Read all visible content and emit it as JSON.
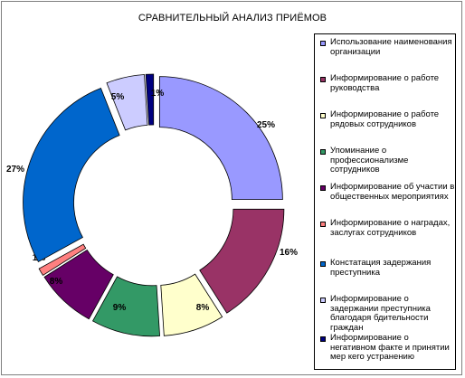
{
  "chart_data": {
    "type": "pie",
    "style": "exploded doughnut",
    "title": "СРАВНИТЕЛЬНЫЙ АНАЛИЗ ПРИЁМОВ",
    "legend_position": "right",
    "slices": [
      {
        "label": "Использование наименования организации",
        "value": 25,
        "value_label": "25%",
        "color": "#9999ff"
      },
      {
        "label": "Информирование о работе руководства",
        "value": 16,
        "value_label": "16%",
        "color": "#993366"
      },
      {
        "label": "Информирование о работе рядовых сотрудников",
        "value": 8,
        "value_label": "8%",
        "color": "#ffffcc"
      },
      {
        "label": "Упоминание о профессионализме сотрудников",
        "value": 9,
        "value_label": "9%",
        "color": "#339966"
      },
      {
        "label": "Информирование об участии в общественных мероприятиях",
        "value": 8,
        "value_label": "8%",
        "color": "#660066"
      },
      {
        "label": "Информирование о наградах, заслугах сотрудников",
        "value": 1,
        "value_label": "1%",
        "color": "#ff8080"
      },
      {
        "label": "Констатация задержания преступника",
        "value": 27,
        "value_label": "27%",
        "color": "#0066cc"
      },
      {
        "label": "Информирование о задержании преступника благодаря бдительности граждан",
        "value": 5,
        "value_label": "5%",
        "color": "#ccccff"
      },
      {
        "label": "Информирование о негативном факте и принятии мер кего устранению",
        "value": 1,
        "value_label": "1%",
        "color": "#000080"
      }
    ]
  }
}
